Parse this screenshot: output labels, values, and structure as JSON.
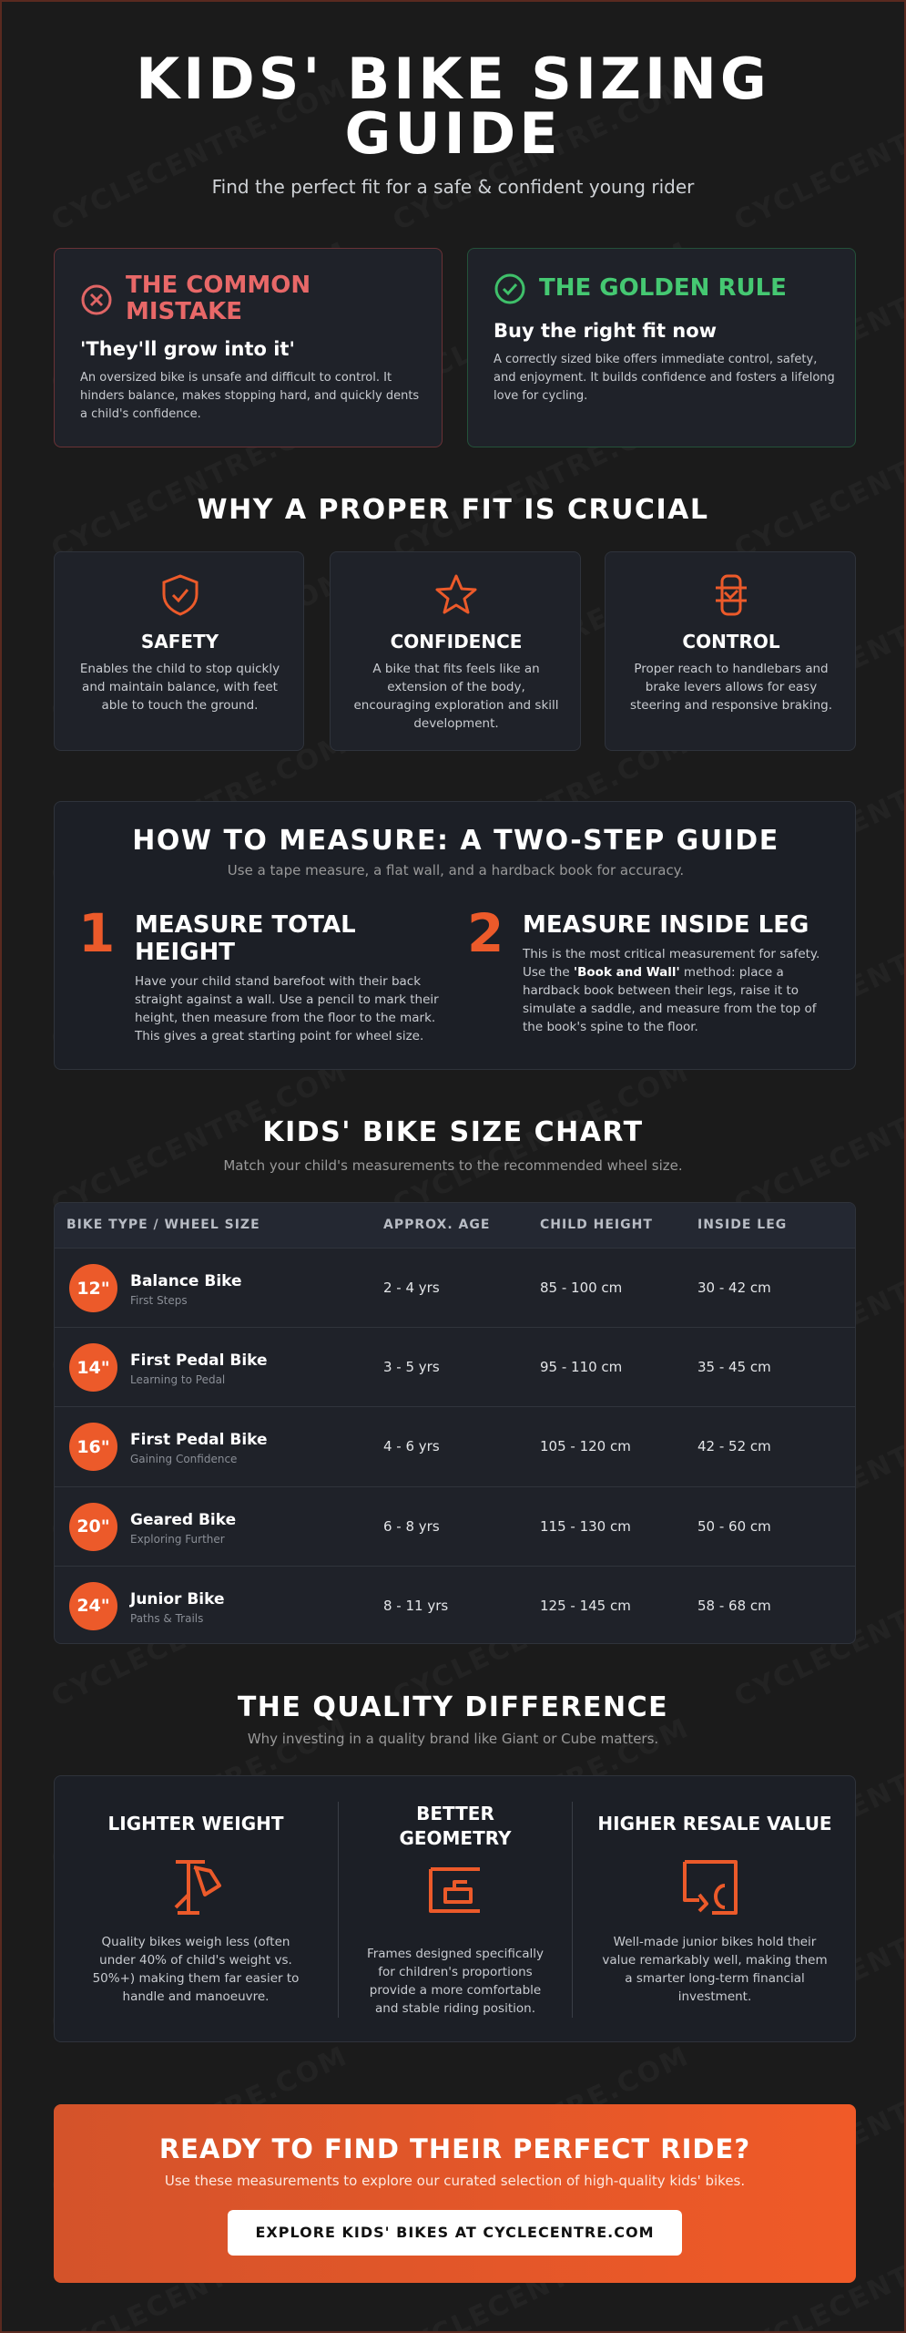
{
  "header": {
    "title": "KIDS' BIKE SIZING GUIDE",
    "subtitle": "Find the perfect fit for a safe & confident young rider"
  },
  "watermark": "CYCLECENTRE.COM",
  "comparison": [
    {
      "heading": "THE COMMON MISTAKE",
      "subheading": "'They'll grow into it'",
      "text": "An oversized bike is unsafe and difficult to control. It hinders balance, makes stopping hard, and quickly dents a child's confidence."
    },
    {
      "heading": "THE GOLDEN RULE",
      "subheading": "Buy the right fit now",
      "text": "A correctly sized bike offers immediate control, safety, and enjoyment. It builds confidence and fosters a lifelong love for cycling."
    }
  ],
  "why": {
    "title": "WHY A PROPER FIT IS CRUCIAL",
    "items": [
      {
        "label": "SAFETY",
        "text": "Enables the child to stop quickly and maintain balance, with feet able to touch the ground."
      },
      {
        "label": "CONFIDENCE",
        "text": "A bike that fits feels like an extension of the body, encouraging exploration and skill development."
      },
      {
        "label": "CONTROL",
        "text": "Proper reach to handlebars and brake levers allows for easy steering and responsive braking."
      }
    ]
  },
  "measure": {
    "title": "HOW TO MEASURE: A TWO-STEP GUIDE",
    "subtitle": "Use a tape measure, a flat wall, and a hardback book for accuracy.",
    "steps": [
      {
        "number": 1,
        "title": "MEASURE TOTAL HEIGHT",
        "text": [
          "Have your child stand barefoot with their back straight against a wall. Use a pencil to mark their height, then measure from the floor to the mark. This gives a great starting point for wheel size."
        ]
      },
      {
        "number": 2,
        "title": "MEASURE INSIDE LEG",
        "text": [
          "This is the most critical measurement for safety. Use the ",
          "'Book and Wall'",
          " method: place a hardback book between their legs, raise it to simulate a saddle, and measure from the top of the book's spine to the floor."
        ]
      }
    ]
  },
  "size_chart": {
    "title": "KIDS' BIKE SIZE CHART",
    "subtitle": "Match your child's measurements to the recommended wheel size.",
    "columns": [
      "BIKE TYPE / WHEEL SIZE",
      "APPROX. AGE",
      "CHILD HEIGHT",
      "INSIDE LEG"
    ],
    "rows": [
      [
        "12\"",
        "Balance Bike",
        "First Steps",
        "2 - 4 yrs",
        "85 - 100 cm",
        "30 - 42 cm"
      ],
      [
        "14\"",
        "First Pedal Bike",
        "Learning to Pedal",
        "3 - 5 yrs",
        "95 - 110 cm",
        "35 - 45 cm"
      ],
      [
        "16\"",
        "First Pedal Bike",
        "Gaining Confidence",
        "4 - 6 yrs",
        "105 - 120 cm",
        "42 - 52 cm"
      ],
      [
        "20\"",
        "Geared Bike",
        "Exploring Further",
        "6 - 8 yrs",
        "115 - 130 cm",
        "50 - 60 cm"
      ],
      [
        "24\"",
        "Junior Bike",
        "Paths & Trails",
        "8 - 11 yrs",
        "125 - 145 cm",
        "58 - 68 cm"
      ]
    ]
  },
  "quality": {
    "title": "THE QUALITY DIFFERENCE",
    "subtitle": "Why investing in a quality brand like Giant or Cube matters.",
    "items": [
      {
        "label": "LIGHTER WEIGHT",
        "text": "Quality bikes weigh less (often under 40% of child's weight vs. 50%+) making them far easier to handle and manoeuvre."
      },
      {
        "label": "BETTER GEOMETRY",
        "text": "Frames designed specifically for children's proportions provide a more comfortable and stable riding position."
      },
      {
        "label": "HIGHER RESALE VALUE",
        "text": "Well-made junior bikes hold their value remarkably well, making them a smarter long-term financial investment."
      }
    ]
  },
  "cta": {
    "title": "READY TO FIND THEIR PERFECT RIDE?",
    "text": "Use these measurements to explore our curated selection of high-quality kids' bikes.",
    "button": "EXPLORE KIDS' BIKES AT CYCLECENTRE.COM"
  }
}
